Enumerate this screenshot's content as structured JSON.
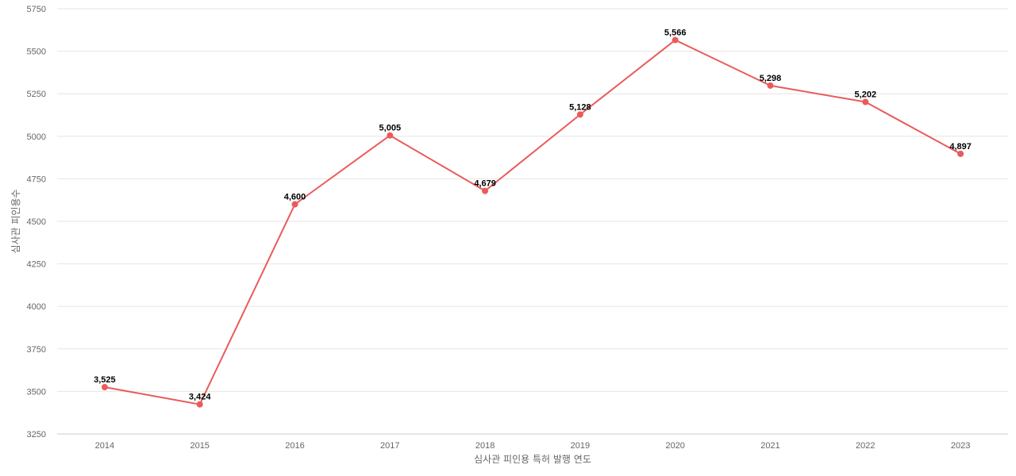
{
  "chart_data": {
    "type": "line",
    "title": "",
    "xlabel": "심사관 피인용 특허 발행 연도",
    "ylabel": "심사관 피인용수",
    "categories": [
      "2014",
      "2015",
      "2016",
      "2017",
      "2018",
      "2019",
      "2020",
      "2021",
      "2022",
      "2023"
    ],
    "series": [
      {
        "values": [
          3525,
          3424,
          4600,
          5005,
          4679,
          5128,
          5566,
          5298,
          5202,
          4897
        ],
        "data_labels": [
          "3,525",
          "3,424",
          "4,600",
          "5,005",
          "4,679",
          "5,128",
          "5,566",
          "5,298",
          "5,202",
          "4,897"
        ]
      }
    ],
    "ylim": [
      3250,
      5750
    ],
    "yticks": [
      "3250",
      "3500",
      "3750",
      "4000",
      "4250",
      "4500",
      "4750",
      "5000",
      "5250",
      "5500",
      "5750"
    ],
    "grid": true,
    "legend": "none",
    "colors": {
      "series": "#eb5a5a",
      "grid": "#e6e6e6",
      "axis": "#cccccc",
      "text": "#666666"
    }
  }
}
